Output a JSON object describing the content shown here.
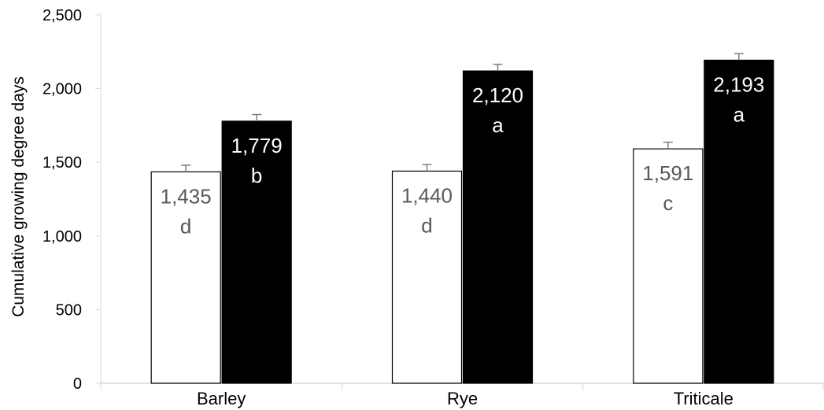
{
  "chart_data": {
    "type": "bar",
    "title": "",
    "xlabel": "",
    "ylabel": "Cumulative growing degree days",
    "ylim": [
      0,
      2500
    ],
    "yticks": [
      0,
      500,
      1000,
      1500,
      2000,
      2500
    ],
    "ytick_labels": [
      "0",
      "500",
      "1,000",
      "1,500",
      "2,000",
      "2,500"
    ],
    "grid": false,
    "legend": "none",
    "categories": [
      "Barley",
      "Rye",
      "Triticale"
    ],
    "series": [
      {
        "fill": "#ffffff",
        "label_color": "#595959",
        "values": [
          1435,
          1440,
          1591
        ],
        "errors": [
          45,
          45,
          45
        ],
        "value_labels": [
          "1,435",
          "1,440",
          "1,591"
        ],
        "letters": [
          "d",
          "d",
          "c"
        ]
      },
      {
        "fill": "#000000",
        "label_color": "#ffffff",
        "values": [
          1779,
          2120,
          2193
        ],
        "errors": [
          45,
          45,
          45
        ],
        "value_labels": [
          "1,779",
          "2,120",
          "2,193"
        ],
        "letters": [
          "b",
          "a",
          "a"
        ]
      }
    ]
  }
}
